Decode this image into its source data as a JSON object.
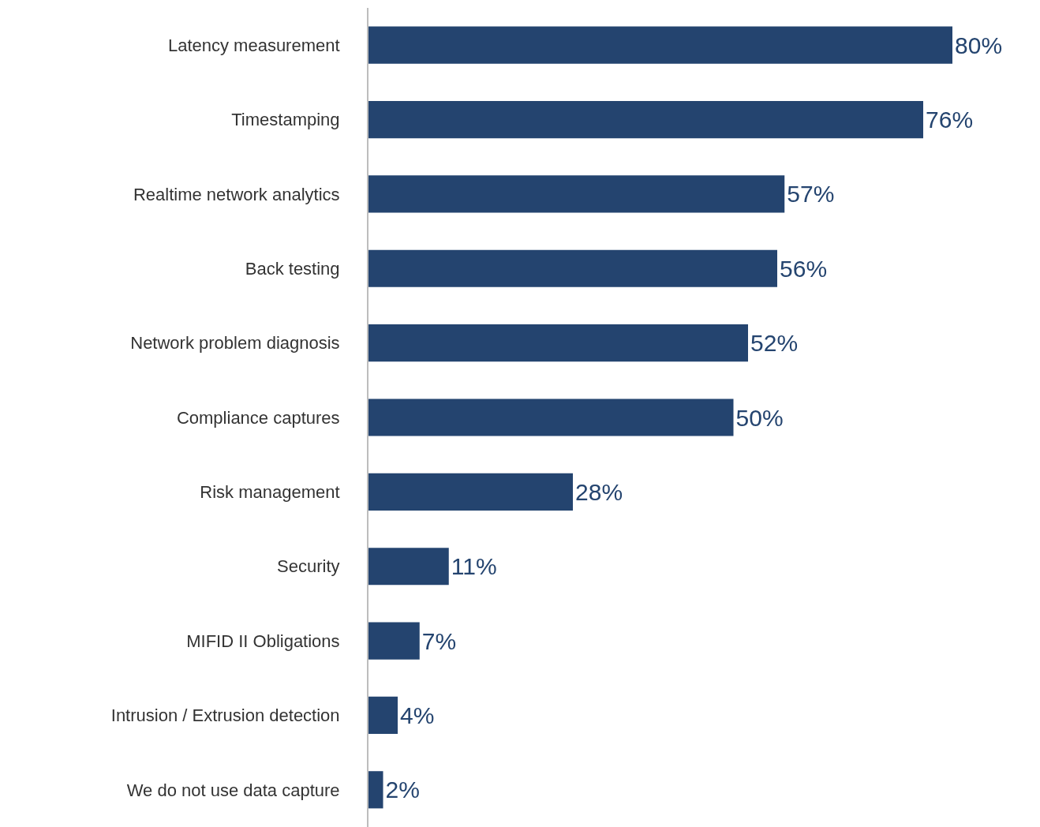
{
  "chart_data": {
    "type": "bar",
    "orientation": "horizontal",
    "color": "#24446f",
    "categories": [
      "Latency measurement",
      "Timestamping",
      "Realtime network analytics",
      "Back testing",
      "Network problem diagnosis",
      "Compliance captures",
      "Risk management",
      "Security",
      "MIFID II Obligations",
      "Intrusion / Extrusion detection",
      "We do not use data capture"
    ],
    "values": [
      80,
      76,
      57,
      56,
      52,
      50,
      28,
      11,
      7,
      4,
      2
    ],
    "value_labels": [
      "80%",
      "76%",
      "57%",
      "56%",
      "52%",
      "50%",
      "28%",
      "11%",
      "7%",
      "4%",
      "2%"
    ]
  }
}
